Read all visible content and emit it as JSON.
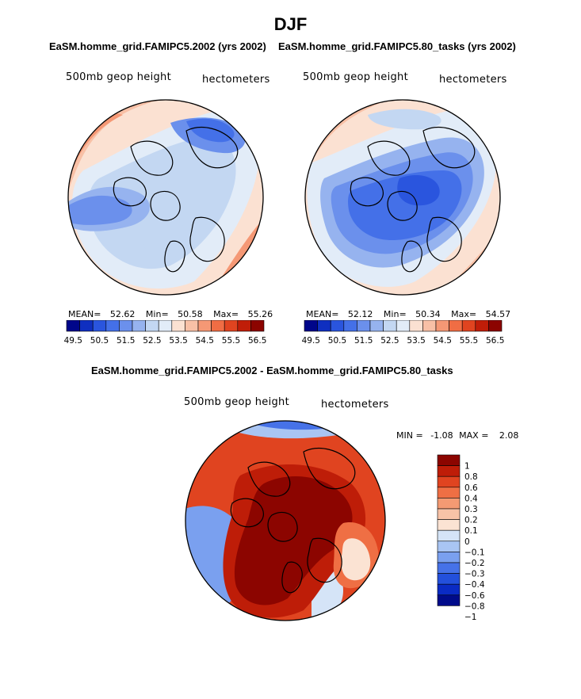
{
  "figure": {
    "season": "DJF",
    "top_left_title": "EaSM.homme_grid.FAMIPC5.2002 (yrs 2002)",
    "top_right_title": "EaSM.homme_grid.FAMIPC5.80_tasks (yrs 2002)",
    "diff_title": "EaSM.homme_grid.FAMIPC5.2002 - EaSM.homme_grid.FAMIPC5.80_tasks"
  },
  "colors": {
    "abs_scale": [
      "#00068a",
      "#0f2fc0",
      "#2a55de",
      "#4470e8",
      "#6b90ec",
      "#96b3ef",
      "#c3d7f2",
      "#e2ecf8",
      "#fbe1d2",
      "#f8c0a6",
      "#f59875",
      "#f06d44",
      "#e04420",
      "#c01d08",
      "#8c0400"
    ],
    "diff_scale": [
      "#000b8a",
      "#0a2bc4",
      "#2350dc",
      "#4672e8",
      "#7aa0ef",
      "#a9c5f3",
      "#d5e4f7",
      "#fbe3d3",
      "#f8c3a7",
      "#f49a73",
      "#ef6f44",
      "#e04420",
      "#be1d08",
      "#8c0500"
    ]
  },
  "chart_data": [
    {
      "type": "heatmap",
      "projection": "north-polar-stereographic",
      "title": "EaSM.homme_grid.FAMIPC5.2002 (yrs 2002)",
      "variable_label": "500mb geop height",
      "units_label": "hectometers",
      "stats": {
        "mean_label": "MEAN=",
        "mean": "52.62",
        "min_label": "Min=",
        "min": "50.58",
        "max_label": "Max=",
        "max": "55.26"
      },
      "colorbar": {
        "orientation": "horizontal",
        "levels": [
          49.5,
          50,
          50.5,
          51,
          51.5,
          52,
          52.5,
          53,
          53.5,
          54,
          54.5,
          55,
          55.5,
          56,
          56.5
        ],
        "tick_labels": [
          "49.5",
          "50.5",
          "51.5",
          "52.5",
          "53.5",
          "54.5",
          "55.5",
          "56.5"
        ]
      }
    },
    {
      "type": "heatmap",
      "projection": "north-polar-stereographic",
      "title": "EaSM.homme_grid.FAMIPC5.80_tasks (yrs 2002)",
      "variable_label": "500mb geop height",
      "units_label": "hectometers",
      "stats": {
        "mean_label": "MEAN=",
        "mean": "52.12",
        "min_label": "Min=",
        "min": "50.34",
        "max_label": "Max=",
        "max": "54.57"
      },
      "colorbar": {
        "orientation": "horizontal",
        "levels": [
          49.5,
          50,
          50.5,
          51,
          51.5,
          52,
          52.5,
          53,
          53.5,
          54,
          54.5,
          55,
          55.5,
          56,
          56.5
        ],
        "tick_labels": [
          "49.5",
          "50.5",
          "51.5",
          "52.5",
          "53.5",
          "54.5",
          "55.5",
          "56.5"
        ]
      }
    },
    {
      "type": "heatmap",
      "projection": "north-polar-stereographic",
      "title": "EaSM.homme_grid.FAMIPC5.2002 - EaSM.homme_grid.FAMIPC5.80_tasks",
      "variable_label": "500mb geop height",
      "units_label": "hectometers",
      "stats": {
        "min_label": "MIN =",
        "min": "-1.08",
        "max_label": "MAX =",
        "max": "2.08"
      },
      "colorbar": {
        "orientation": "vertical",
        "levels": [
          -1,
          -0.8,
          -0.6,
          -0.4,
          -0.3,
          -0.2,
          -0.1,
          0,
          0.1,
          0.2,
          0.3,
          0.4,
          0.6,
          0.8,
          1
        ],
        "tick_labels": [
          "1",
          "0.8",
          "0.6",
          "0.4",
          "0.3",
          "0.2",
          "0.1",
          "0",
          "−0.1",
          "−0.2",
          "−0.3",
          "−0.4",
          "−0.6",
          "−0.8",
          "−1"
        ]
      }
    }
  ]
}
